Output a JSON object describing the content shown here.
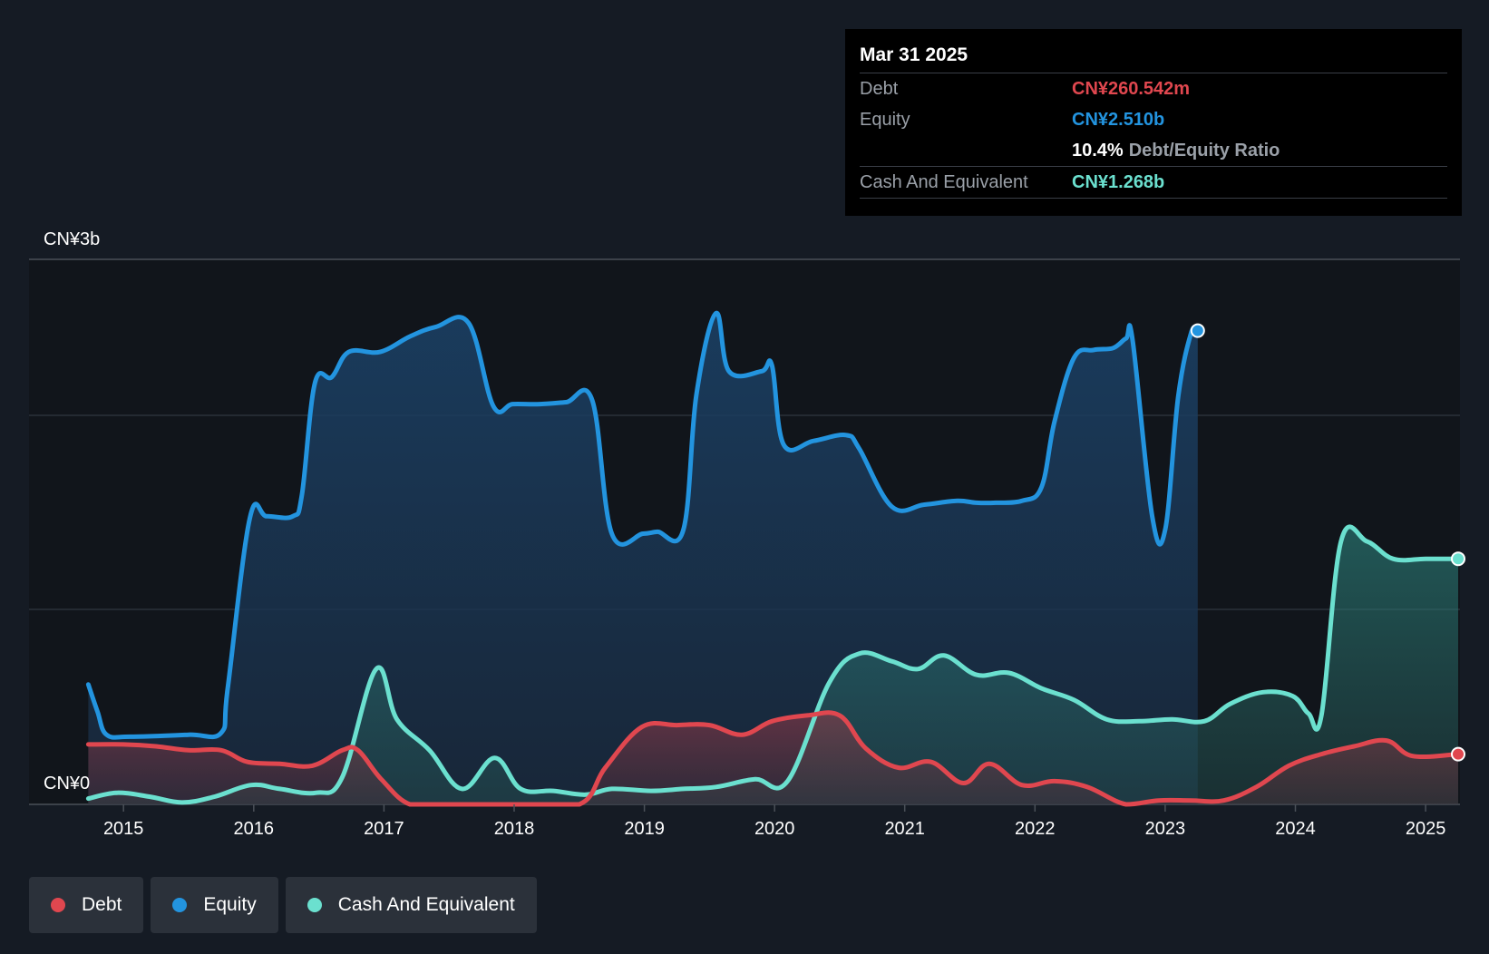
{
  "chart_data": {
    "type": "area",
    "title": "",
    "xlabel": "",
    "ylabel": "",
    "y_unit": "CN¥",
    "ylim": [
      0,
      2.8
    ],
    "ytick_labels": {
      "top": "CN¥3b",
      "bottom": "CN¥0"
    },
    "x_ticks": [
      "2015",
      "2016",
      "2017",
      "2018",
      "2019",
      "2020",
      "2021",
      "2022",
      "2023",
      "2024",
      "2025"
    ],
    "xlim": [
      2014.72,
      2025.25
    ],
    "grid": true,
    "legend_position": "bottom-left",
    "series": [
      {
        "name": "Equity",
        "color": "#2394df",
        "values_unit": "CN¥b",
        "points": [
          [
            2014.73,
            0.62
          ],
          [
            2014.8,
            0.48
          ],
          [
            2014.87,
            0.36
          ],
          [
            2015.05,
            0.35
          ],
          [
            2015.5,
            0.36
          ],
          [
            2015.75,
            0.37
          ],
          [
            2015.8,
            0.6
          ],
          [
            2015.97,
            1.48
          ],
          [
            2016.1,
            1.49
          ],
          [
            2016.3,
            1.49
          ],
          [
            2016.37,
            1.6
          ],
          [
            2016.47,
            2.18
          ],
          [
            2016.6,
            2.21
          ],
          [
            2016.73,
            2.34
          ],
          [
            2016.97,
            2.34
          ],
          [
            2017.2,
            2.42
          ],
          [
            2017.4,
            2.47
          ],
          [
            2017.65,
            2.49
          ],
          [
            2017.84,
            2.06
          ],
          [
            2017.99,
            2.07
          ],
          [
            2018.2,
            2.07
          ],
          [
            2018.4,
            2.08
          ],
          [
            2018.6,
            2.09
          ],
          [
            2018.75,
            1.4
          ],
          [
            2018.99,
            1.4
          ],
          [
            2019.1,
            1.41
          ],
          [
            2019.3,
            1.42
          ],
          [
            2019.4,
            2.12
          ],
          [
            2019.55,
            2.54
          ],
          [
            2019.65,
            2.24
          ],
          [
            2019.9,
            2.24
          ],
          [
            2019.98,
            2.27
          ],
          [
            2020.07,
            1.86
          ],
          [
            2020.3,
            1.88
          ],
          [
            2020.55,
            1.91
          ],
          [
            2020.65,
            1.84
          ],
          [
            2020.9,
            1.54
          ],
          [
            2021.15,
            1.55
          ],
          [
            2021.4,
            1.57
          ],
          [
            2021.55,
            1.56
          ],
          [
            2021.7,
            1.56
          ],
          [
            2021.9,
            1.57
          ],
          [
            2022.05,
            1.64
          ],
          [
            2022.15,
            1.98
          ],
          [
            2022.3,
            2.31
          ],
          [
            2022.45,
            2.35
          ],
          [
            2022.6,
            2.36
          ],
          [
            2022.7,
            2.41
          ],
          [
            2022.75,
            2.4
          ],
          [
            2022.9,
            1.49
          ],
          [
            2023.0,
            1.42
          ],
          [
            2023.1,
            2.11
          ],
          [
            2023.2,
            2.44
          ],
          [
            2023.25,
            2.45
          ]
        ]
      },
      {
        "name": "Cash And Equivalent",
        "color": "#6be0cf",
        "values_unit": "CN¥b",
        "points": [
          [
            2014.73,
            0.03
          ],
          [
            2014.95,
            0.06
          ],
          [
            2015.2,
            0.04
          ],
          [
            2015.45,
            0.01
          ],
          [
            2015.7,
            0.04
          ],
          [
            2015.98,
            0.1
          ],
          [
            2016.2,
            0.08
          ],
          [
            2016.48,
            0.06
          ],
          [
            2016.68,
            0.14
          ],
          [
            2016.94,
            0.7
          ],
          [
            2017.1,
            0.44
          ],
          [
            2017.35,
            0.28
          ],
          [
            2017.6,
            0.08
          ],
          [
            2017.85,
            0.24
          ],
          [
            2018.05,
            0.08
          ],
          [
            2018.3,
            0.07
          ],
          [
            2018.55,
            0.05
          ],
          [
            2018.75,
            0.08
          ],
          [
            2019.05,
            0.07
          ],
          [
            2019.3,
            0.08
          ],
          [
            2019.55,
            0.09
          ],
          [
            2019.85,
            0.13
          ],
          [
            2020.1,
            0.12
          ],
          [
            2020.42,
            0.63
          ],
          [
            2020.65,
            0.78
          ],
          [
            2020.9,
            0.74
          ],
          [
            2021.1,
            0.7
          ],
          [
            2021.3,
            0.77
          ],
          [
            2021.55,
            0.67
          ],
          [
            2021.8,
            0.68
          ],
          [
            2022.05,
            0.6
          ],
          [
            2022.3,
            0.54
          ],
          [
            2022.55,
            0.44
          ],
          [
            2022.8,
            0.43
          ],
          [
            2023.05,
            0.44
          ],
          [
            2023.3,
            0.43
          ],
          [
            2023.5,
            0.52
          ],
          [
            2023.75,
            0.58
          ],
          [
            2023.98,
            0.56
          ],
          [
            2024.1,
            0.47
          ],
          [
            2024.2,
            0.46
          ],
          [
            2024.35,
            1.36
          ],
          [
            2024.55,
            1.36
          ],
          [
            2024.75,
            1.27
          ],
          [
            2025.0,
            1.27
          ],
          [
            2025.25,
            1.27
          ]
        ]
      },
      {
        "name": "Debt",
        "color": "#e0474f",
        "values_unit": "CN¥b",
        "points": [
          [
            2014.73,
            0.31
          ],
          [
            2015.0,
            0.31
          ],
          [
            2015.25,
            0.3
          ],
          [
            2015.5,
            0.28
          ],
          [
            2015.75,
            0.28
          ],
          [
            2015.95,
            0.22
          ],
          [
            2016.2,
            0.21
          ],
          [
            2016.45,
            0.2
          ],
          [
            2016.68,
            0.28
          ],
          [
            2016.8,
            0.28
          ],
          [
            2016.98,
            0.13
          ],
          [
            2017.2,
            0.0
          ],
          [
            2017.5,
            0.0
          ],
          [
            2017.75,
            0.0
          ],
          [
            2018.0,
            0.0
          ],
          [
            2018.5,
            0.0
          ],
          [
            2018.7,
            0.19
          ],
          [
            2018.98,
            0.4
          ],
          [
            2019.25,
            0.41
          ],
          [
            2019.5,
            0.41
          ],
          [
            2019.75,
            0.36
          ],
          [
            2019.98,
            0.43
          ],
          [
            2020.25,
            0.46
          ],
          [
            2020.5,
            0.46
          ],
          [
            2020.7,
            0.29
          ],
          [
            2020.95,
            0.19
          ],
          [
            2021.2,
            0.22
          ],
          [
            2021.45,
            0.11
          ],
          [
            2021.65,
            0.21
          ],
          [
            2021.9,
            0.1
          ],
          [
            2022.15,
            0.12
          ],
          [
            2022.4,
            0.09
          ],
          [
            2022.7,
            0.0
          ],
          [
            2022.95,
            0.02
          ],
          [
            2023.2,
            0.02
          ],
          [
            2023.45,
            0.02
          ],
          [
            2023.7,
            0.09
          ],
          [
            2023.95,
            0.2
          ],
          [
            2024.2,
            0.26
          ],
          [
            2024.45,
            0.3
          ],
          [
            2024.7,
            0.33
          ],
          [
            2024.9,
            0.25
          ],
          [
            2025.25,
            0.26
          ]
        ]
      }
    ]
  },
  "tooltip": {
    "date": "Mar 31 2025",
    "debt_label": "Debt",
    "debt_value": "CN¥260.542m",
    "equity_label": "Equity",
    "equity_value": "CN¥2.510b",
    "ratio_value": "10.4%",
    "ratio_label": "Debt/Equity Ratio",
    "cash_label": "Cash And Equivalent",
    "cash_value": "CN¥1.268b"
  },
  "legend": {
    "items": [
      {
        "label": "Debt",
        "color": "#e0474f"
      },
      {
        "label": "Equity",
        "color": "#2394df"
      },
      {
        "label": "Cash And Equivalent",
        "color": "#6be0cf"
      }
    ]
  }
}
